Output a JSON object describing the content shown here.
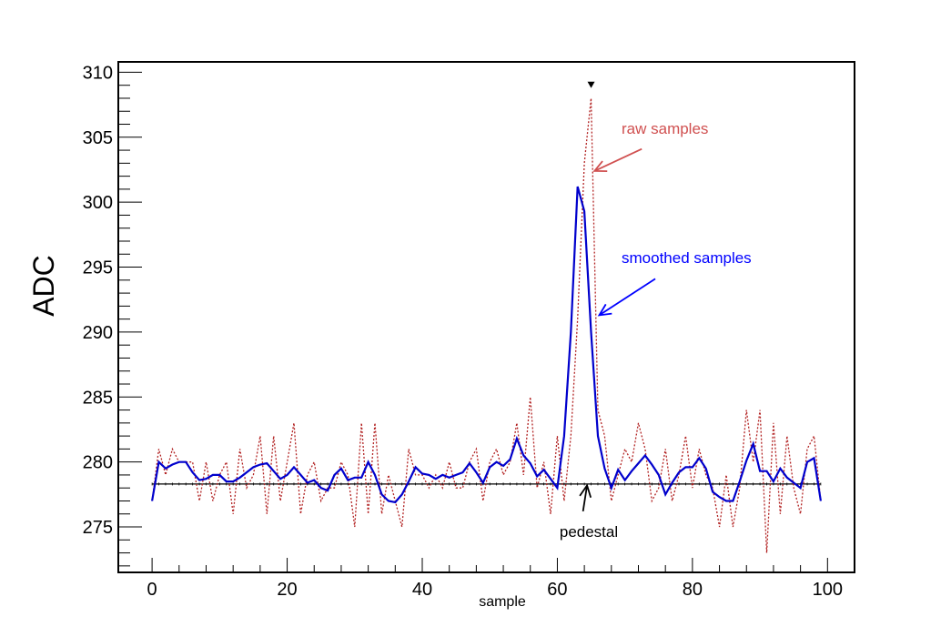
{
  "chart_data": {
    "type": "line",
    "xlabel": "sample",
    "ylabel": "ADC",
    "xlim": [
      -5,
      104
    ],
    "ylim": [
      271.5,
      310.8
    ],
    "x_ticks": [
      0,
      20,
      40,
      60,
      80,
      100
    ],
    "y_ticks": [
      275,
      280,
      285,
      290,
      295,
      300,
      305,
      310
    ],
    "grid": false,
    "legend": "none",
    "series": [
      {
        "key": "raw",
        "style": "dotted",
        "color": "#b22222",
        "x": [
          0,
          1,
          2,
          3,
          4,
          5,
          6,
          7,
          8,
          9,
          10,
          11,
          12,
          13,
          14,
          15,
          16,
          17,
          18,
          19,
          20,
          21,
          22,
          23,
          24,
          25,
          26,
          27,
          28,
          29,
          30,
          31,
          32,
          33,
          34,
          35,
          36,
          37,
          38,
          39,
          40,
          41,
          42,
          43,
          44,
          45,
          46,
          47,
          48,
          49,
          50,
          51,
          52,
          53,
          54,
          55,
          56,
          57,
          58,
          59,
          60,
          61,
          62,
          63,
          64,
          65,
          66,
          67,
          68,
          69,
          70,
          71,
          72,
          73,
          74,
          75,
          76,
          77,
          78,
          79,
          80,
          81,
          82,
          83,
          84,
          85,
          86,
          87,
          88,
          89,
          90,
          91,
          92,
          93,
          94,
          95,
          96,
          97,
          98,
          99
        ],
        "y": [
          277,
          281,
          279,
          281,
          280,
          280,
          280,
          277,
          280,
          277,
          279,
          280,
          276,
          281,
          278,
          279,
          282,
          276,
          282,
          277,
          280,
          283,
          276,
          279,
          280,
          277,
          278,
          278,
          280,
          279,
          275,
          283,
          276,
          283,
          276,
          279,
          277,
          275,
          281,
          279,
          279,
          278,
          279,
          278,
          280,
          278,
          278,
          280,
          281,
          277,
          280,
          281,
          279,
          280,
          283,
          279,
          285,
          278,
          280,
          276,
          282,
          277,
          282,
          291,
          303,
          308,
          284,
          282,
          277,
          279,
          281,
          280,
          283,
          281,
          277,
          278,
          281,
          277,
          279,
          282,
          278,
          281,
          279,
          278,
          275,
          279,
          275,
          278,
          284,
          280,
          284,
          273,
          283,
          276,
          282,
          278,
          276,
          281,
          282,
          277
        ]
      },
      {
        "key": "smoothed",
        "style": "solid",
        "color": "#0000cc",
        "x": [
          0,
          1,
          2,
          3,
          4,
          5,
          6,
          7,
          8,
          9,
          10,
          11,
          12,
          13,
          14,
          15,
          16,
          17,
          18,
          19,
          20,
          21,
          22,
          23,
          24,
          25,
          26,
          27,
          28,
          29,
          30,
          31,
          32,
          33,
          34,
          35,
          36,
          37,
          38,
          39,
          40,
          41,
          42,
          43,
          44,
          45,
          46,
          47,
          48,
          49,
          50,
          51,
          52,
          53,
          54,
          55,
          56,
          57,
          58,
          59,
          60,
          61,
          62,
          63,
          64,
          65,
          66,
          67,
          68,
          69,
          70,
          71,
          72,
          73,
          74,
          75,
          76,
          77,
          78,
          79,
          80,
          81,
          82,
          83,
          84,
          85,
          86,
          87,
          88,
          89,
          90,
          91,
          92,
          93,
          94,
          95,
          96,
          97,
          98,
          99
        ],
        "y": [
          277,
          280,
          279.5,
          279.8,
          280,
          280,
          279.2,
          278.6,
          278.7,
          279,
          279,
          278.5,
          278.5,
          278.8,
          279.2,
          279.6,
          279.8,
          279.9,
          279.3,
          278.7,
          279,
          279.6,
          279,
          278.4,
          278.6,
          278,
          277.8,
          279,
          279.5,
          278.6,
          278.8,
          278.8,
          280,
          279,
          277.5,
          277,
          276.9,
          277.5,
          278.5,
          279.6,
          279.1,
          279,
          278.7,
          279,
          278.8,
          279,
          279.2,
          279.9,
          279.2,
          278.4,
          279.6,
          280,
          279.7,
          280.2,
          281.8,
          280.5,
          279.9,
          278.9,
          279.4,
          278.7,
          278,
          282,
          290,
          301.2,
          299.3,
          290,
          282,
          279.5,
          278,
          279.4,
          278.6,
          279.3,
          279.9,
          280.5,
          279.8,
          279,
          277.5,
          278.4,
          279.2,
          279.6,
          279.6,
          280.3,
          279.5,
          277.7,
          277.3,
          277,
          277,
          278.5,
          280.1,
          281.4,
          279.3,
          279.3,
          278.5,
          279.5,
          278.8,
          278.4,
          278,
          280,
          280.3,
          277
        ]
      },
      {
        "key": "pedestal",
        "style": "solid",
        "color": "#000000",
        "x": [
          0,
          99
        ],
        "y": [
          278.3,
          278.3
        ]
      }
    ],
    "peak_marker": {
      "x": 65,
      "y": 309
    },
    "annotations": [
      {
        "key": "raw",
        "text": "raw samples",
        "color": "#d05050",
        "arrow_from": [
          72.5,
          304.1
        ],
        "arrow_to": [
          65.5,
          302.4
        ]
      },
      {
        "key": "smoothed",
        "text": "smoothed samples",
        "color": "#0000ff",
        "arrow_from": [
          74.5,
          294.1
        ],
        "arrow_to": [
          66.2,
          291.3
        ]
      },
      {
        "key": "pedestal",
        "text": "pedestal",
        "color": "#000000",
        "arrow_from": [
          63.8,
          276.2
        ],
        "arrow_to": [
          64.4,
          278.2
        ]
      }
    ]
  }
}
